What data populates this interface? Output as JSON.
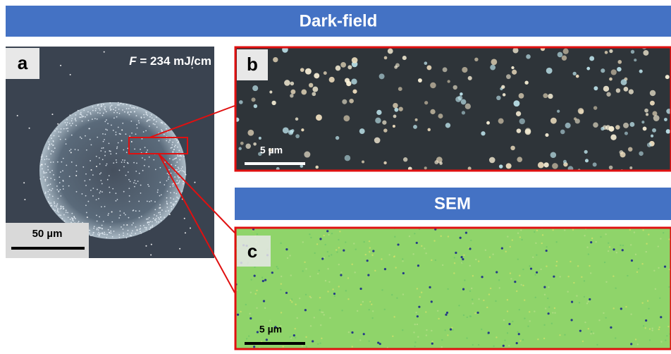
{
  "header": {
    "title": "Dark-field"
  },
  "panels": [
    {
      "label": "a",
      "annotation": {
        "symbol": "F",
        "text": "= 234 mJ/cm"
      },
      "scale_bar": "50 µm"
    },
    {
      "label": "b",
      "scale_bar": "5 µm"
    },
    {
      "label": "c",
      "scale_bar": "5 µm"
    }
  ],
  "sem_header": {
    "title": "SEM"
  }
}
